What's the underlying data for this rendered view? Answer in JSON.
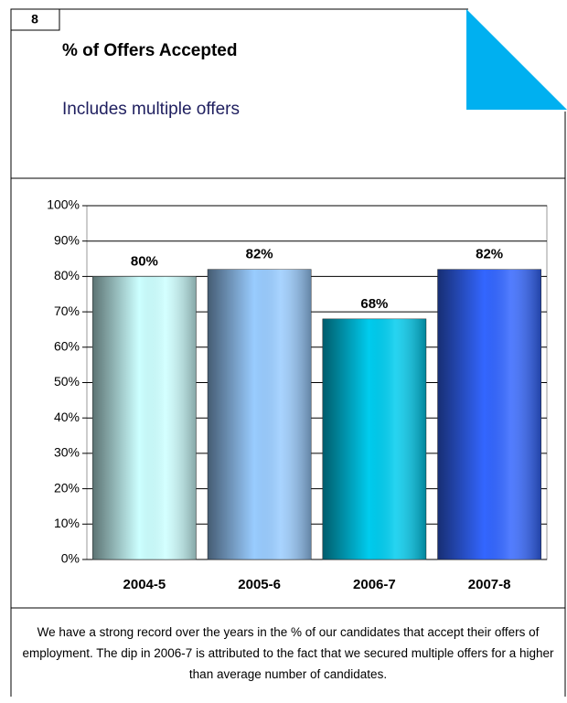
{
  "panel": {
    "number": "8"
  },
  "chart_data": {
    "type": "bar",
    "title": "% of Offers Accepted",
    "subtitle": "Includes multiple offers",
    "categories": [
      "2004-5",
      "2005-6",
      "2006-7",
      "2007-8"
    ],
    "values": [
      80,
      82,
      68,
      82
    ],
    "value_labels": [
      "80%",
      "82%",
      "68%",
      "82%"
    ],
    "colors": [
      "#ccffff",
      "#99ccff",
      "#00ccee",
      "#3366ff"
    ],
    "ylim": [
      0,
      100
    ],
    "yticks": [
      {
        "value": 0,
        "label": "0%"
      },
      {
        "value": 10,
        "label": "10%"
      },
      {
        "value": 20,
        "label": "20%"
      },
      {
        "value": 30,
        "label": "30%"
      },
      {
        "value": 40,
        "label": "40%"
      },
      {
        "value": 50,
        "label": "50%"
      },
      {
        "value": 60,
        "label": "60%"
      },
      {
        "value": 70,
        "label": "70%"
      },
      {
        "value": 80,
        "label": "80%"
      },
      {
        "value": 90,
        "label": "90%"
      },
      {
        "value": 100,
        "label": "100%"
      }
    ],
    "grid": true,
    "annotation": "We have a strong record over the years in the % of our candidates that accept their offers of employment. The dip in 2006-7 is attributed to the fact that we secured multiple offers for a higher than average number of  candidates."
  }
}
